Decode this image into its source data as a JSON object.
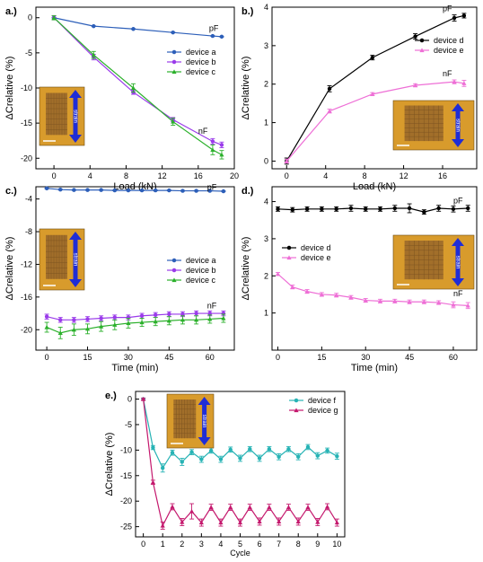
{
  "chart_data": [
    {
      "panel": "a.)",
      "type": "line",
      "xlabel": "Load (kN)",
      "ylabel": "ΔCrelative (%)",
      "xlim": [
        -2,
        20
      ],
      "ylim": [
        -21.5,
        1.5
      ],
      "xticks": [
        0,
        4,
        8,
        12,
        16,
        20
      ],
      "yticks": [
        0,
        -5,
        -10,
        -15,
        -20
      ],
      "legend": "right",
      "inset_label": "strain",
      "annotations": [
        {
          "text": "pF",
          "x": 17.2,
          "y": -1.9
        },
        {
          "text": "nF",
          "x": 16.0,
          "y": -16.5
        }
      ],
      "series": [
        {
          "name": "device a",
          "color": "#2d5fb9",
          "marker": "circle",
          "x": [
            0,
            4.4,
            8.8,
            13.2,
            17.6,
            18.6
          ],
          "y": [
            0,
            -1.2,
            -1.6,
            -2.1,
            -2.6,
            -2.7
          ],
          "err": [
            0.05,
            0.05,
            0.05,
            0.05,
            0.05,
            0.05
          ]
        },
        {
          "name": "device b",
          "color": "#9a3bea",
          "marker": "circle",
          "x": [
            0,
            4.4,
            8.8,
            13.2,
            17.6,
            18.6
          ],
          "y": [
            0,
            -5.6,
            -10.6,
            -14.5,
            -17.6,
            -18.1
          ],
          "err": [
            0.3,
            0.4,
            0.3,
            0.3,
            0.4,
            0.4
          ]
        },
        {
          "name": "device c",
          "color": "#2bb02b",
          "marker": "triangle",
          "x": [
            0,
            4.4,
            8.8,
            13.2,
            17.6,
            18.6
          ],
          "y": [
            0,
            -5.3,
            -10.0,
            -14.8,
            -18.8,
            -19.5
          ],
          "err": [
            0.3,
            0.5,
            0.6,
            0.5,
            0.7,
            0.6
          ]
        }
      ]
    },
    {
      "panel": "b.)",
      "type": "line",
      "xlabel": "Load (kN)",
      "ylabel": "ΔCrelative (%)",
      "xlim": [
        -1.5,
        19.5
      ],
      "ylim": [
        -0.2,
        4.0
      ],
      "xticks": [
        0,
        4,
        8,
        12,
        16
      ],
      "yticks": [
        0,
        1,
        2,
        3,
        4
      ],
      "legend": "right",
      "inset_label": "strain",
      "annotations": [
        {
          "text": "pF",
          "x": 16.0,
          "y": 3.9
        },
        {
          "text": "nF",
          "x": 16.0,
          "y": 2.2
        }
      ],
      "series": [
        {
          "name": "device d",
          "color": "#000000",
          "marker": "circle",
          "x": [
            0,
            4.4,
            8.8,
            13.2,
            17.2,
            18.2
          ],
          "y": [
            0,
            1.88,
            2.69,
            3.24,
            3.72,
            3.78
          ],
          "err": [
            0.08,
            0.08,
            0.06,
            0.07,
            0.08,
            0.06
          ]
        },
        {
          "name": "device e",
          "color": "#ee6fd6",
          "marker": "triangle",
          "x": [
            0,
            4.4,
            8.8,
            13.2,
            17.2,
            18.2
          ],
          "y": [
            0,
            1.3,
            1.74,
            1.97,
            2.06,
            2.02
          ],
          "err": [
            0.05,
            0.05,
            0.04,
            0.04,
            0.05,
            0.08
          ]
        }
      ]
    },
    {
      "panel": "c.)",
      "type": "line",
      "xlabel": "Time (min)",
      "ylabel": "ΔCrelative (%)",
      "xlim": [
        -4,
        69
      ],
      "ylim": [
        -22.5,
        -2.5
      ],
      "xticks": [
        0,
        15,
        30,
        45,
        60
      ],
      "yticks": [
        -4,
        -8,
        -12,
        -16,
        -20
      ],
      "legend": "right",
      "inset_label": "strain",
      "annotations": [
        {
          "text": "pF",
          "x": 59,
          "y": -2.9
        },
        {
          "text": "nF",
          "x": 59,
          "y": -17.4
        }
      ],
      "series": [
        {
          "name": "device a",
          "color": "#2d5fb9",
          "marker": "circle",
          "x": [
            0,
            5,
            10,
            15,
            20,
            25,
            30,
            35,
            40,
            45,
            50,
            55,
            60,
            65
          ],
          "y": [
            -2.7,
            -2.85,
            -2.9,
            -2.9,
            -2.9,
            -2.95,
            -2.95,
            -2.95,
            -2.95,
            -2.95,
            -3.0,
            -3.0,
            -3.0,
            -3.05
          ],
          "err": [
            0.05,
            0.05,
            0.05,
            0.05,
            0.05,
            0.05,
            0.05,
            0.05,
            0.05,
            0.05,
            0.05,
            0.05,
            0.05,
            0.05
          ]
        },
        {
          "name": "device b",
          "color": "#9a3bea",
          "marker": "circle",
          "x": [
            0,
            5,
            10,
            15,
            20,
            25,
            30,
            35,
            40,
            45,
            50,
            55,
            60,
            65
          ],
          "y": [
            -18.4,
            -18.8,
            -18.8,
            -18.7,
            -18.6,
            -18.5,
            -18.5,
            -18.3,
            -18.2,
            -18.1,
            -18.1,
            -18.0,
            -18.0,
            -18.0
          ],
          "err": [
            0.3,
            0.3,
            0.3,
            0.3,
            0.3,
            0.3,
            0.3,
            0.3,
            0.3,
            0.3,
            0.3,
            0.3,
            0.3,
            0.3
          ]
        },
        {
          "name": "device c",
          "color": "#2bb02b",
          "marker": "triangle",
          "x": [
            0,
            5,
            10,
            15,
            20,
            25,
            30,
            35,
            40,
            45,
            50,
            55,
            60,
            65
          ],
          "y": [
            -19.7,
            -20.4,
            -20.0,
            -19.9,
            -19.6,
            -19.4,
            -19.2,
            -19.1,
            -19.0,
            -18.9,
            -18.8,
            -18.8,
            -18.7,
            -18.6
          ],
          "err": [
            0.6,
            0.7,
            0.7,
            0.6,
            0.6,
            0.6,
            0.6,
            0.5,
            0.5,
            0.5,
            0.5,
            0.5,
            0.5,
            0.5
          ]
        }
      ]
    },
    {
      "panel": "d.)",
      "type": "line",
      "xlabel": "Time (min)",
      "ylabel": "ΔCrelative (%)",
      "xlim": [
        -2,
        68
      ],
      "ylim": [
        0,
        4.4
      ],
      "xticks": [
        0,
        15,
        30,
        45,
        60
      ],
      "yticks": [
        1,
        2,
        3,
        4
      ],
      "legend": "left",
      "inset_label": "strain",
      "annotations": [
        {
          "text": "pF",
          "x": 60,
          "y": 3.95
        },
        {
          "text": "nF",
          "x": 60,
          "y": 1.45
        }
      ],
      "series": [
        {
          "name": "device d",
          "color": "#000000",
          "marker": "circle",
          "x": [
            0,
            5,
            10,
            15,
            20,
            25,
            30,
            35,
            40,
            45,
            50,
            55,
            60,
            65
          ],
          "y": [
            3.8,
            3.78,
            3.8,
            3.8,
            3.8,
            3.82,
            3.8,
            3.8,
            3.82,
            3.82,
            3.72,
            3.82,
            3.8,
            3.82
          ],
          "err": [
            0.06,
            0.06,
            0.06,
            0.06,
            0.06,
            0.08,
            0.06,
            0.06,
            0.08,
            0.12,
            0.06,
            0.08,
            0.08,
            0.08
          ]
        },
        {
          "name": "device e",
          "color": "#ee6fd6",
          "marker": "triangle",
          "x": [
            0,
            5,
            10,
            15,
            20,
            25,
            30,
            35,
            40,
            45,
            50,
            55,
            60,
            65
          ],
          "y": [
            2.05,
            1.7,
            1.58,
            1.5,
            1.48,
            1.42,
            1.34,
            1.32,
            1.32,
            1.3,
            1.3,
            1.28,
            1.22,
            1.2
          ],
          "err": [
            0.04,
            0.05,
            0.05,
            0.05,
            0.05,
            0.05,
            0.05,
            0.05,
            0.05,
            0.05,
            0.05,
            0.05,
            0.08,
            0.08
          ]
        }
      ]
    },
    {
      "panel": "e.)",
      "type": "line",
      "xlabel": "Cycle",
      "ylabel": "ΔCrelative (%)",
      "xlim": [
        -0.4,
        10.4
      ],
      "ylim": [
        -27,
        1.5
      ],
      "xticks": [
        0,
        1,
        2,
        3,
        4,
        5,
        6,
        7,
        8,
        9,
        10
      ],
      "yticks": [
        0,
        -5,
        -10,
        -15,
        -20,
        -25
      ],
      "legend": "top-right",
      "inset_label": "strain",
      "annotations": [],
      "series": [
        {
          "name": "device f",
          "color": "#27b3b5",
          "marker": "circle",
          "x": [
            0,
            0.5,
            1,
            1.5,
            2,
            2.5,
            3,
            3.5,
            4,
            4.5,
            5,
            5.5,
            6,
            6.5,
            7,
            7.5,
            8,
            8.5,
            9,
            9.5,
            10
          ],
          "y": [
            0,
            -9.5,
            -13.5,
            -10.5,
            -12.3,
            -10.4,
            -11.8,
            -10.1,
            -11.8,
            -9.9,
            -11.6,
            -9.8,
            -11.6,
            -9.8,
            -11.3,
            -9.8,
            -11.3,
            -9.4,
            -11.1,
            -10.1,
            -11.2
          ],
          "err": [
            0.2,
            0.4,
            0.8,
            0.5,
            0.7,
            0.5,
            0.6,
            0.5,
            0.6,
            0.5,
            0.6,
            0.5,
            0.6,
            0.5,
            0.6,
            0.5,
            0.6,
            0.5,
            0.6,
            0.5,
            0.6
          ]
        },
        {
          "name": "device g",
          "color": "#c4186d",
          "marker": "triangle",
          "x": [
            0,
            0.5,
            1,
            1.5,
            2,
            2.5,
            3,
            3.5,
            4,
            4.5,
            5,
            5.5,
            6,
            6.5,
            7,
            7.5,
            8,
            8.5,
            9,
            9.5,
            10
          ],
          "y": [
            0,
            -16.3,
            -24.8,
            -21.1,
            -24.1,
            -22.0,
            -24.2,
            -21.2,
            -24.2,
            -21.2,
            -24.2,
            -21.2,
            -24.0,
            -21.2,
            -24.0,
            -21.2,
            -24.0,
            -21.2,
            -24.1,
            -21.1,
            -24.2
          ],
          "err": [
            0.2,
            0.4,
            0.7,
            0.6,
            0.7,
            1.5,
            0.7,
            0.6,
            0.7,
            0.6,
            0.7,
            0.6,
            0.7,
            0.6,
            0.7,
            0.6,
            0.7,
            0.6,
            0.7,
            0.6,
            0.7
          ]
        }
      ]
    }
  ]
}
